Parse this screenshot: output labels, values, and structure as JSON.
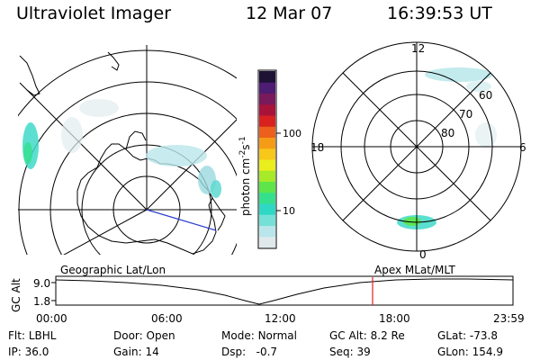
{
  "header": {
    "title": "Ultraviolet Imager",
    "date": "12 Mar 07",
    "time": "16:39:53 UT"
  },
  "colorbar": {
    "label": "photon cm",
    "label_sup1": "-2",
    "label_s": "s",
    "label_sup2": "-1",
    "tick_values": [
      "100",
      "10"
    ],
    "scale": "log",
    "colors": [
      "#dfe9ec",
      "#b9e6ea",
      "#75e0d6",
      "#2fd8c4",
      "#34e08c",
      "#5de54a",
      "#a6ea2a",
      "#e9ee1c",
      "#f7c719",
      "#f59b16",
      "#ec5f1c",
      "#d8221f",
      "#a8133a",
      "#781a5b",
      "#4d1d74",
      "#1e1235"
    ]
  },
  "geo_panel": {
    "label": "Geographic Lat/Lon"
  },
  "mag_panel": {
    "label": "Apex MLat/MLT",
    "mlt_labels": {
      "top": "12",
      "left": "18",
      "right": "6",
      "bottom": "0"
    },
    "lat_labels": [
      "60",
      "70",
      "80"
    ]
  },
  "alt_plot": {
    "ylabel": "GC Alt",
    "yticks": [
      "9.0",
      "1.8"
    ],
    "xticks": [
      "00:00",
      "06:00",
      "12:00",
      "18:00",
      "23:59"
    ],
    "current_time_marker": "16:39:53",
    "marker_color": "#e02020"
  },
  "info": {
    "flt": {
      "label": "Flt:",
      "value": "LBHL"
    },
    "ip": {
      "label": "IP:",
      "value": "36.0"
    },
    "door": {
      "label": "Door:",
      "value": "Open"
    },
    "gain": {
      "label": "Gain:",
      "value": "14"
    },
    "mode": {
      "label": "Mode:",
      "value": "Normal"
    },
    "dsp": {
      "label": "Dsp:",
      "value": "-0.7"
    },
    "gcalt": {
      "label": "GC Alt:",
      "value": "8.2 Re"
    },
    "seq": {
      "label": "Seq:",
      "value": "39"
    },
    "glat": {
      "label": "GLat:",
      "value": "-73.8"
    },
    "glon": {
      "label": "GLon:",
      "value": "154.9"
    }
  }
}
